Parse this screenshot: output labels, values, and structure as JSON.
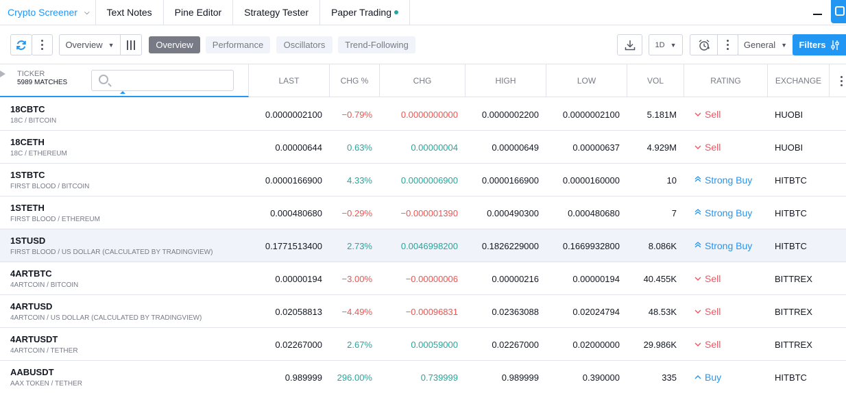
{
  "tabs": {
    "crypto_screener": "Crypto Screener",
    "text_notes": "Text Notes",
    "pine_editor": "Pine Editor",
    "strategy_tester": "Strategy Tester",
    "paper_trading": "Paper Trading"
  },
  "toolbar": {
    "view_select": "Overview",
    "pills": [
      "Overview",
      "Performance",
      "Oscillators",
      "Trend-Following"
    ],
    "interval": "1D",
    "columns_set": "General",
    "filters": "Filters"
  },
  "header": {
    "ticker": "TICKER",
    "matches": "5989 MATCHES",
    "search_placeholder": "",
    "columns": [
      "LAST",
      "CHG %",
      "CHG",
      "HIGH",
      "LOW",
      "VOL",
      "RATING",
      "EXCHANGE"
    ]
  },
  "rows": [
    {
      "symbol": "18CBTC",
      "desc": "18C / BITCOIN",
      "last": "0.0000002100",
      "chg_pct": "−0.79%",
      "chg": "0.0000000000",
      "high": "0.0000002200",
      "low": "0.0000002100",
      "vol": "5.181M",
      "rating": "Sell",
      "exchange": "HUOBI"
    },
    {
      "symbol": "18CETH",
      "desc": "18C / ETHEREUM",
      "last": "0.00000644",
      "chg_pct": "0.63%",
      "chg": "0.00000004",
      "high": "0.00000649",
      "low": "0.00000637",
      "vol": "4.929M",
      "rating": "Sell",
      "exchange": "HUOBI"
    },
    {
      "symbol": "1STBTC",
      "desc": "FIRST BLOOD / BITCOIN",
      "last": "0.0000166900",
      "chg_pct": "4.33%",
      "chg": "0.0000006900",
      "high": "0.0000166900",
      "low": "0.0000160000",
      "vol": "10",
      "rating": "Strong Buy",
      "exchange": "HITBTC"
    },
    {
      "symbol": "1STETH",
      "desc": "FIRST BLOOD / ETHEREUM",
      "last": "0.000480680",
      "chg_pct": "−0.29%",
      "chg": "−0.000001390",
      "high": "0.000490300",
      "low": "0.000480680",
      "vol": "7",
      "rating": "Strong Buy",
      "exchange": "HITBTC"
    },
    {
      "symbol": "1STUSD",
      "desc": "FIRST BLOOD / US DOLLAR (CALCULATED BY TRADINGVIEW)",
      "last": "0.1771513400",
      "chg_pct": "2.73%",
      "chg": "0.0046998200",
      "high": "0.1826229000",
      "low": "0.1669932800",
      "vol": "8.086K",
      "rating": "Strong Buy",
      "exchange": "HITBTC"
    },
    {
      "symbol": "4ARTBTC",
      "desc": "4ARTCOIN / BITCOIN",
      "last": "0.00000194",
      "chg_pct": "−3.00%",
      "chg": "−0.00000006",
      "high": "0.00000216",
      "low": "0.00000194",
      "vol": "40.455K",
      "rating": "Sell",
      "exchange": "BITTREX"
    },
    {
      "symbol": "4ARTUSD",
      "desc": "4ARTCOIN / US DOLLAR (CALCULATED BY TRADINGVIEW)",
      "last": "0.02058813",
      "chg_pct": "−4.49%",
      "chg": "−0.00096831",
      "high": "0.02363088",
      "low": "0.02024794",
      "vol": "48.53K",
      "rating": "Sell",
      "exchange": "BITTREX"
    },
    {
      "symbol": "4ARTUSDT",
      "desc": "4ARTCOIN / TETHER",
      "last": "0.02267000",
      "chg_pct": "2.67%",
      "chg": "0.00059000",
      "high": "0.02267000",
      "low": "0.02000000",
      "vol": "29.986K",
      "rating": "Sell",
      "exchange": "BITTREX"
    },
    {
      "symbol": "AABUSDT",
      "desc": "AAX TOKEN / TETHER",
      "last": "0.989999",
      "chg_pct": "296.00%",
      "chg": "0.739999",
      "high": "0.989999",
      "low": "0.390000",
      "vol": "335",
      "rating": "Buy",
      "exchange": "HITBTC"
    }
  ],
  "colors": {
    "accent": "#2196f3",
    "positive": "#26a69a",
    "negative": "#ef5350",
    "sell": "#f7525f"
  },
  "icons": {
    "refresh": "refresh-icon",
    "more": "more-vertical-icon",
    "columns": "columns-icon",
    "download": "download-icon",
    "alarm": "alarm-clock-icon",
    "filters": "sliders-icon",
    "search": "search-icon"
  }
}
